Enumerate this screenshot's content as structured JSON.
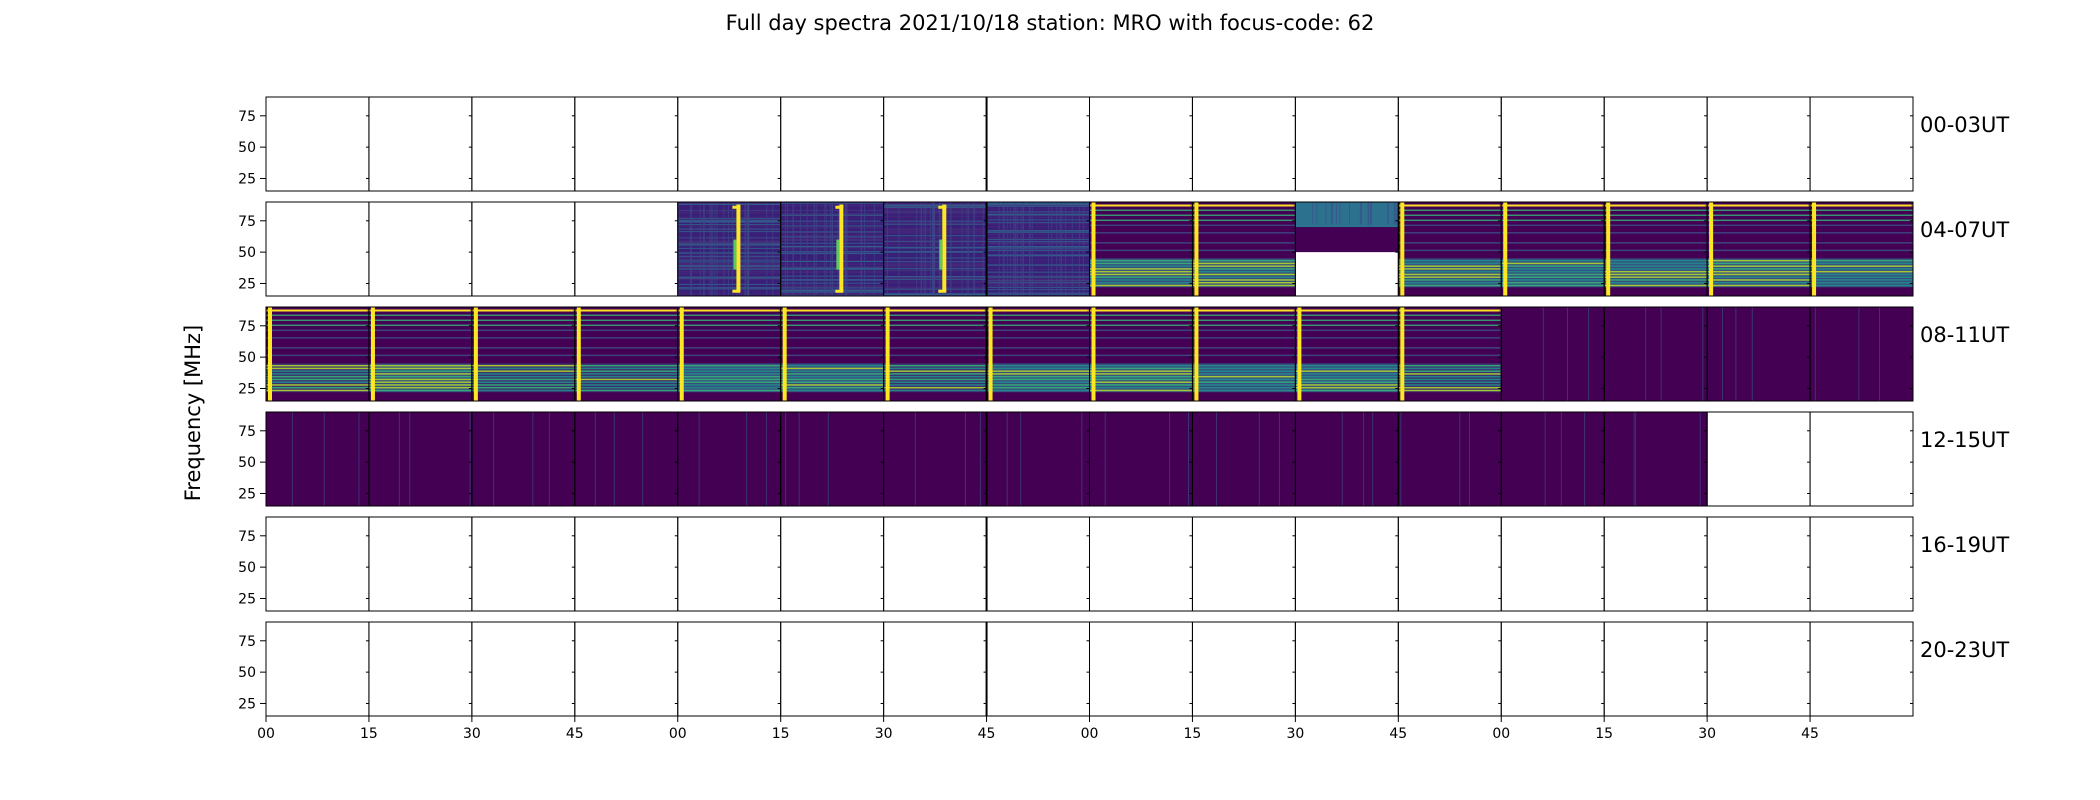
{
  "chart_data": {
    "type": "heatmap",
    "title": "Full day spectra 2021/10/18 station: MRO with focus-code: 62",
    "ylabel": "Frequency [MHz]",
    "xlabel": "",
    "y_ticks": [
      "25",
      "50",
      "75"
    ],
    "y_range_mhz": [
      15,
      90
    ],
    "x_tick_labels": [
      "00",
      "15",
      "30",
      "45",
      "00",
      "15",
      "30",
      "45",
      "00",
      "15",
      "30",
      "45",
      "00",
      "15",
      "30",
      "45"
    ],
    "rows": [
      {
        "label": "00-03UT",
        "hours": [
          0,
          1,
          2,
          3
        ],
        "panels": [
          "empty",
          "empty",
          "empty",
          "empty",
          "empty",
          "empty",
          "empty",
          "empty",
          "empty",
          "empty",
          "empty",
          "empty",
          "empty",
          "empty",
          "empty",
          "empty"
        ]
      },
      {
        "label": "04-07UT",
        "hours": [
          4,
          5,
          6,
          7
        ],
        "panels": [
          "empty",
          "empty",
          "empty",
          "empty",
          "burst",
          "burst",
          "burst",
          "noise",
          "data",
          "data",
          "partial",
          "data",
          "data",
          "data",
          "data",
          "data"
        ]
      },
      {
        "label": "08-11UT",
        "hours": [
          8,
          9,
          10,
          11
        ],
        "panels": [
          "data",
          "data",
          "data",
          "data",
          "data",
          "data",
          "data",
          "data",
          "data",
          "data",
          "data",
          "data",
          "flat",
          "flat",
          "flat",
          "flat"
        ]
      },
      {
        "label": "12-15UT",
        "hours": [
          12,
          13,
          14,
          15
        ],
        "panels": [
          "flat",
          "flat",
          "flat",
          "flat",
          "flat",
          "flat",
          "flat",
          "flat",
          "flat",
          "flat",
          "flat",
          "flat",
          "flat",
          "flat",
          "empty",
          "empty"
        ]
      },
      {
        "label": "16-19UT",
        "hours": [
          16,
          17,
          18,
          19
        ],
        "panels": [
          "empty",
          "empty",
          "empty",
          "empty",
          "empty",
          "empty",
          "empty",
          "empty",
          "empty",
          "empty",
          "empty",
          "empty",
          "empty",
          "empty",
          "empty",
          "empty"
        ]
      },
      {
        "label": "20-23UT",
        "hours": [
          20,
          21,
          22,
          23
        ],
        "panels": [
          "empty",
          "empty",
          "empty",
          "empty",
          "empty",
          "empty",
          "empty",
          "empty",
          "empty",
          "empty",
          "empty",
          "empty",
          "empty",
          "empty",
          "empty",
          "empty"
        ]
      }
    ],
    "colormap": "viridis",
    "colors": {
      "low": "#440154",
      "mid": "#21918c",
      "high": "#fde725",
      "frame": "#000000"
    }
  }
}
